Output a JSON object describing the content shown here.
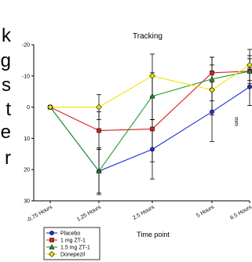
{
  "left_fragments": [
    "k",
    "g",
    "s",
    "t",
    "e",
    "r"
  ],
  "chart_data": {
    "type": "line",
    "title": "Tracking",
    "xlabel": "Time point",
    "ylabel": "mm",
    "categories": [
      "-0.75 Hours",
      "1.25 Hours",
      "2.5 Hours",
      "5 Hours",
      "6.5 Hours"
    ],
    "ylim": [
      30,
      -20
    ],
    "yticks": [
      -20,
      -10,
      0,
      10,
      20,
      30
    ],
    "ytick_labels": [
      "-20",
      "-10",
      "0",
      "10",
      "20",
      "30"
    ],
    "y_axis_reversed": true,
    "legend_position": "bottom-left",
    "series": [
      {
        "name": "Placebo",
        "color": "#1f2fd6",
        "marker": "circle",
        "values": [
          0,
          20.5,
          13.5,
          1.5,
          -6.5
        ],
        "errors": [
          0,
          7.5,
          9.5,
          9.5,
          6
        ]
      },
      {
        "name": "1 mg ZT-1",
        "color": "#d81e1e",
        "marker": "square",
        "values": [
          0,
          7.5,
          7,
          -11,
          -11.5
        ],
        "errors": [
          0,
          6,
          10.5,
          5,
          4
        ]
      },
      {
        "name": "1.5 mg ZT-1",
        "color": "#1e9d2b",
        "marker": "triangle",
        "values": [
          0,
          20.5,
          -3.5,
          -9,
          -11.5
        ],
        "errors": [
          0,
          7,
          7.5,
          7,
          5
        ]
      },
      {
        "name": "Donepezil",
        "color": "#f2e300",
        "marker": "diamond",
        "values": [
          0,
          0,
          -10,
          -5.5,
          -13.5
        ],
        "errors": [
          0,
          4,
          7,
          8,
          5
        ]
      }
    ]
  }
}
